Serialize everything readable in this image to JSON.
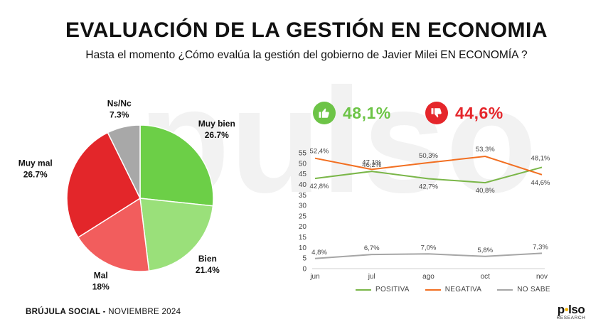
{
  "title": "EVALUACIÓN DE LA GESTIÓN EN ECONOMIA",
  "subtitle": "Hasta el momento ¿Cómo evalúa la gestión del gobierno de Javier Milei EN ECONOMÍA ?",
  "colors": {
    "muy_bien": "#6ccf47",
    "bien": "#9ae07a",
    "mal": "#f25d5d",
    "muy_mal": "#e3262a",
    "nsnc": "#a8a8a8",
    "positiva": "#7ab648",
    "negativa": "#f26f21",
    "no_sabe": "#a6a6a6",
    "kpi_green": "#6dc447",
    "kpi_red": "#e5262b"
  },
  "kpis": {
    "positive": {
      "value": "48,1%",
      "icon": "thumbs-up-icon"
    },
    "negative": {
      "value": "44,6%",
      "icon": "thumbs-down-icon"
    }
  },
  "chart_data": [
    {
      "type": "pie",
      "categories": [
        "Muy bien",
        "Bien",
        "Mal",
        "Muy mal",
        "Ns/Nc"
      ],
      "values": [
        26.7,
        21.4,
        18,
        26.7,
        7.3
      ],
      "labels": [
        "26.7%",
        "21.4%",
        "18%",
        "26.7%",
        "7.3%"
      ]
    },
    {
      "type": "line",
      "categories": [
        "jun",
        "jul",
        "ago",
        "oct",
        "nov"
      ],
      "ylim": [
        0,
        55
      ],
      "yticks": [
        0,
        5,
        10,
        15,
        20,
        25,
        30,
        35,
        40,
        45,
        50,
        55
      ],
      "series": [
        {
          "name": "POSITIVA",
          "values": [
            42.8,
            46.2,
            42.7,
            40.8,
            48.1
          ],
          "labels": [
            "42,8%",
            "46,2%",
            "42,7%",
            "40,8%",
            "48,1%"
          ]
        },
        {
          "name": "NEGATIVA",
          "values": [
            52.4,
            47.1,
            50.3,
            53.3,
            44.6
          ],
          "labels": [
            "52,4%",
            "47,1%",
            "50,3%",
            "53,3%",
            "44,6%"
          ]
        },
        {
          "name": "NO SABE",
          "values": [
            4.8,
            6.7,
            7.0,
            5.8,
            7.3
          ],
          "labels": [
            "4,8%",
            "6,7%",
            "7,0%",
            "5,8%",
            "7,3%"
          ]
        }
      ]
    }
  ],
  "footer": {
    "brand": "BRÚJULA SOCIAL -",
    "date": " NOVIEMBRE 2024"
  },
  "logo": {
    "prefix": "p",
    "dot": "•",
    "suffix": "lso",
    "sub": "RESEARCH"
  },
  "watermark": "pulso"
}
